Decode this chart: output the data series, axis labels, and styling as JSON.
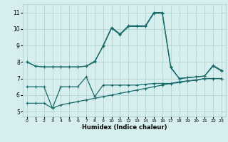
{
  "title": "",
  "xlabel": "Humidex (Indice chaleur)",
  "bg_color": "#d6eeee",
  "grid_color": "#b8d8d8",
  "line_color": "#1a6b6b",
  "x_ticks": [
    0,
    1,
    2,
    3,
    4,
    5,
    6,
    7,
    8,
    9,
    10,
    11,
    12,
    13,
    14,
    15,
    16,
    17,
    18,
    19,
    20,
    21,
    22,
    23
  ],
  "y_ticks": [
    5,
    6,
    7,
    8,
    9,
    10,
    11
  ],
  "ylim": [
    4.7,
    11.5
  ],
  "xlim": [
    -0.5,
    23.5
  ],
  "series": [
    [
      8.0,
      7.75,
      7.7,
      7.7,
      7.7,
      7.7,
      7.7,
      7.75,
      8.0,
      9.0,
      10.1,
      9.7,
      10.2,
      10.2,
      10.2,
      11.0,
      11.0,
      7.7,
      7.0,
      7.05,
      7.1,
      7.15,
      7.8,
      7.5
    ],
    [
      8.0,
      7.75,
      7.7,
      7.7,
      7.7,
      7.7,
      7.7,
      7.75,
      8.05,
      8.95,
      10.05,
      9.65,
      10.15,
      10.15,
      10.15,
      10.95,
      10.95,
      7.65,
      7.0,
      7.05,
      7.1,
      7.15,
      7.75,
      7.45
    ],
    [
      6.5,
      6.5,
      6.5,
      5.2,
      6.5,
      6.5,
      6.5,
      7.1,
      5.9,
      6.6,
      6.6,
      6.6,
      6.6,
      6.6,
      6.65,
      6.7,
      6.7,
      6.7,
      6.75,
      6.85,
      6.9,
      7.0,
      7.0,
      7.0
    ],
    [
      5.5,
      5.5,
      5.5,
      5.2,
      5.4,
      5.5,
      5.6,
      5.7,
      5.8,
      5.9,
      6.0,
      6.1,
      6.2,
      6.3,
      6.4,
      6.5,
      6.6,
      6.7,
      6.8,
      6.85,
      6.9,
      7.0,
      7.0,
      7.0
    ]
  ]
}
